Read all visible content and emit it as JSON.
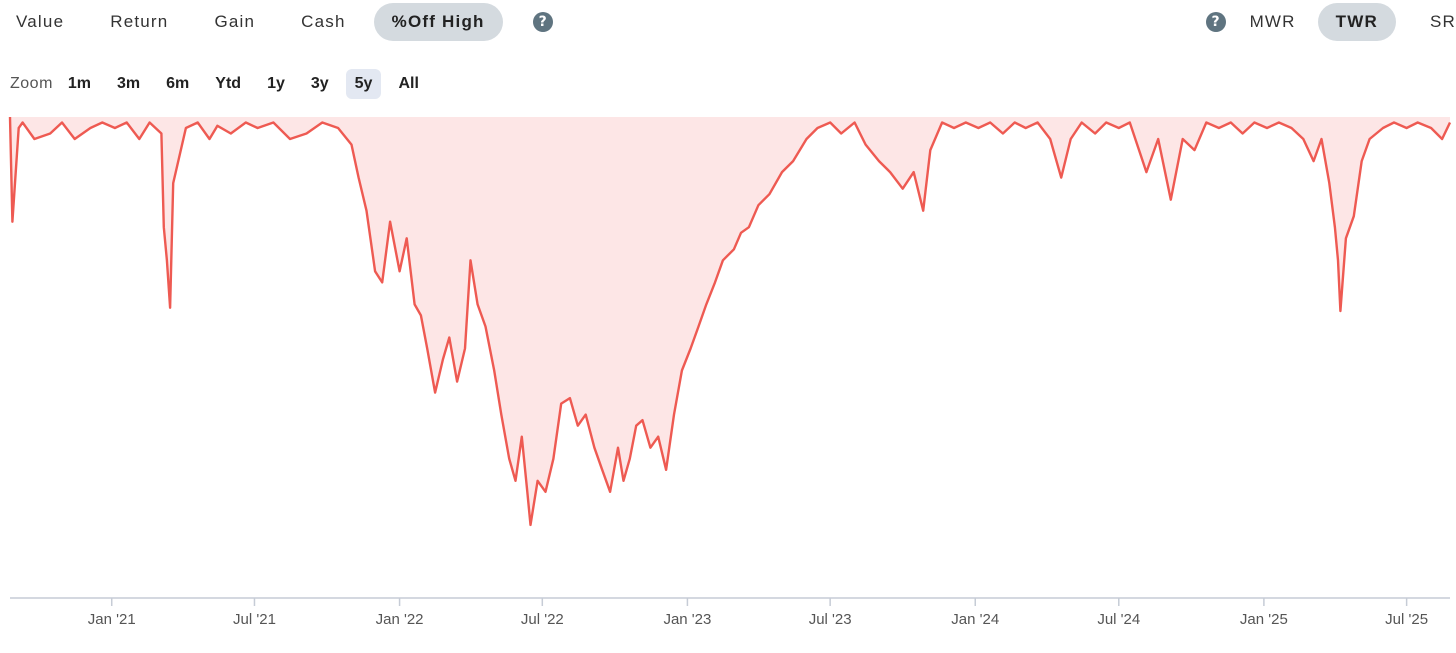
{
  "tabs": [
    {
      "label": "Value"
    },
    {
      "label": "Return"
    },
    {
      "label": "Gain"
    },
    {
      "label": "Cash"
    },
    {
      "label": "%Off High",
      "active": true
    }
  ],
  "help_icon_glyph": "?",
  "return_methods": [
    {
      "label": "MWR"
    },
    {
      "label": "TWR",
      "active": true
    },
    {
      "label": "SR"
    }
  ],
  "zoom": {
    "label": "Zoom",
    "options": [
      "1m",
      "3m",
      "6m",
      "Ytd",
      "1y",
      "3y",
      "5y",
      "All"
    ],
    "selected": "5y"
  },
  "colors": {
    "line": "#ee5a52",
    "area": "#fde6e6",
    "axis": "#c6ccd6",
    "active_tab": "#d4dadf",
    "active_zoom": "#e3e8f2",
    "help_icon": "#5f7480"
  },
  "chart_data": {
    "type": "area",
    "metric": "% off high",
    "x_range": [
      "2020-08-25",
      "2025-08-25"
    ],
    "ylim": [
      -42,
      0
    ],
    "grid": false,
    "x_ticks": [
      {
        "date": "2021-01-01",
        "label": "Jan '21"
      },
      {
        "date": "2021-07-01",
        "label": "Jul '21"
      },
      {
        "date": "2022-01-01",
        "label": "Jan '22"
      },
      {
        "date": "2022-07-01",
        "label": "Jul '22"
      },
      {
        "date": "2023-01-01",
        "label": "Jan '23"
      },
      {
        "date": "2023-07-01",
        "label": "Jul '23"
      },
      {
        "date": "2024-01-01",
        "label": "Jan '24"
      },
      {
        "date": "2024-07-01",
        "label": "Jul '24"
      },
      {
        "date": "2025-01-01",
        "label": "Jan '25"
      },
      {
        "date": "2025-07-01",
        "label": "Jul '25"
      }
    ],
    "x": [
      "2020-08-25",
      "2020-08-28",
      "2020-09-05",
      "2020-09-10",
      "2020-09-25",
      "2020-10-15",
      "2020-10-30",
      "2020-11-15",
      "2020-12-05",
      "2020-12-20",
      "2021-01-05",
      "2021-01-20",
      "2021-02-05",
      "2021-02-18",
      "2021-03-05",
      "2021-03-08",
      "2021-03-12",
      "2021-03-16",
      "2021-03-20",
      "2021-04-05",
      "2021-04-20",
      "2021-05-05",
      "2021-05-15",
      "2021-06-01",
      "2021-06-20",
      "2021-07-05",
      "2021-07-25",
      "2021-08-15",
      "2021-09-05",
      "2021-09-25",
      "2021-10-15",
      "2021-11-01",
      "2021-11-10",
      "2021-11-20",
      "2021-12-01",
      "2021-12-10",
      "2021-12-20",
      "2022-01-01",
      "2022-01-10",
      "2022-01-20",
      "2022-01-28",
      "2022-02-05",
      "2022-02-15",
      "2022-02-25",
      "2022-03-05",
      "2022-03-15",
      "2022-03-25",
      "2022-04-01",
      "2022-04-10",
      "2022-04-20",
      "2022-05-01",
      "2022-05-10",
      "2022-05-20",
      "2022-05-28",
      "2022-06-05",
      "2022-06-12",
      "2022-06-16",
      "2022-06-25",
      "2022-07-05",
      "2022-07-15",
      "2022-07-25",
      "2022-08-05",
      "2022-08-15",
      "2022-08-25",
      "2022-09-05",
      "2022-09-15",
      "2022-09-25",
      "2022-10-05",
      "2022-10-12",
      "2022-10-20",
      "2022-10-28",
      "2022-11-05",
      "2022-11-15",
      "2022-11-25",
      "2022-12-05",
      "2022-12-15",
      "2022-12-25",
      "2023-01-05",
      "2023-01-15",
      "2023-01-25",
      "2023-02-05",
      "2023-02-15",
      "2023-03-01",
      "2023-03-10",
      "2023-03-20",
      "2023-04-01",
      "2023-04-15",
      "2023-05-01",
      "2023-05-15",
      "2023-06-01",
      "2023-06-15",
      "2023-07-01",
      "2023-07-15",
      "2023-08-01",
      "2023-08-15",
      "2023-09-01",
      "2023-09-15",
      "2023-10-01",
      "2023-10-15",
      "2023-10-27",
      "2023-11-05",
      "2023-11-20",
      "2023-12-05",
      "2023-12-20",
      "2024-01-05",
      "2024-01-20",
      "2024-02-05",
      "2024-02-20",
      "2024-03-05",
      "2024-03-20",
      "2024-04-05",
      "2024-04-19",
      "2024-05-01",
      "2024-05-15",
      "2024-06-01",
      "2024-06-15",
      "2024-07-01",
      "2024-07-15",
      "2024-08-05",
      "2024-08-20",
      "2024-09-05",
      "2024-09-20",
      "2024-10-05",
      "2024-10-20",
      "2024-11-05",
      "2024-11-20",
      "2024-12-05",
      "2024-12-20",
      "2025-01-05",
      "2025-01-20",
      "2025-02-05",
      "2025-02-20",
      "2025-03-05",
      "2025-03-15",
      "2025-03-25",
      "2025-04-01",
      "2025-04-05",
      "2025-04-08",
      "2025-04-15",
      "2025-04-25",
      "2025-05-05",
      "2025-05-15",
      "2025-06-01",
      "2025-06-15",
      "2025-07-01",
      "2025-07-15",
      "2025-08-01",
      "2025-08-15",
      "2025-08-25"
    ],
    "y": [
      0,
      -9.5,
      -1,
      -0.5,
      -2,
      -1.5,
      -0.5,
      -2,
      -1,
      -0.5,
      -1,
      -0.5,
      -2,
      -0.5,
      -1.5,
      -10,
      -13,
      -17.3,
      -6,
      -1,
      -0.5,
      -2,
      -0.8,
      -1.5,
      -0.5,
      -1,
      -0.5,
      -2,
      -1.5,
      -0.5,
      -1,
      -2.5,
      -5.5,
      -8.5,
      -14,
      -15,
      -9.5,
      -14,
      -11,
      -17,
      -18,
      -21,
      -25,
      -22,
      -20,
      -24,
      -21,
      -13,
      -17,
      -19,
      -23,
      -27,
      -31,
      -33,
      -29,
      -34,
      -37,
      -33,
      -34,
      -31,
      -26,
      -25.5,
      -28,
      -27,
      -30,
      -32,
      -34,
      -30,
      -33,
      -31,
      -28,
      -27.5,
      -30,
      -29,
      -32,
      -27,
      -23,
      -21,
      -19,
      -17,
      -15,
      -13,
      -12,
      -10.5,
      -10,
      -8,
      -7,
      -5,
      -4,
      -2,
      -1,
      -0.5,
      -1.5,
      -0.5,
      -2.5,
      -4,
      -5,
      -6.5,
      -5,
      -8.5,
      -3,
      -0.5,
      -1,
      -0.5,
      -1,
      -0.5,
      -1.5,
      -0.5,
      -1,
      -0.5,
      -2,
      -5.5,
      -2,
      -0.5,
      -1.5,
      -0.5,
      -1,
      -0.5,
      -5,
      -2,
      -7.5,
      -2,
      -3,
      -0.5,
      -1,
      -0.5,
      -1.5,
      -0.5,
      -1,
      -0.5,
      -1,
      -2,
      -4,
      -2,
      -6,
      -10,
      -13,
      -17.6,
      -11,
      -9,
      -4,
      -2,
      -1,
      -0.5,
      -1,
      -0.5,
      -1,
      -2,
      -0.5
    ]
  }
}
